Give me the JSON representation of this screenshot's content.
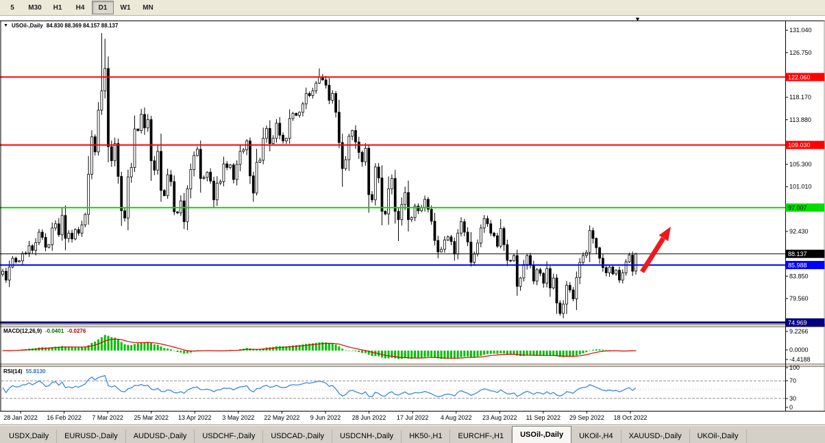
{
  "toolbar": {
    "timeframes": [
      "5",
      "M30",
      "H1",
      "H4",
      "D1",
      "W1",
      "MN"
    ],
    "active": "D1"
  },
  "chart": {
    "title": "USOil-,Daily",
    "ohlc_text": "84.830 88.369 84.157 88.137",
    "dropdown_icon": "▼",
    "scroll_marker_icon": "▼",
    "arrow_color": "#f01818",
    "levels": [
      {
        "name": "resistance-line-1",
        "price": 122.06,
        "label": "122.060",
        "line_color": "#FF0000",
        "text_color": "#FFFFFF",
        "width": 2
      },
      {
        "name": "resistance-line-2",
        "price": 109.03,
        "label": "109.030",
        "line_color": "#FF0000",
        "text_color": "#FFFFFF",
        "width": 2
      },
      {
        "name": "pivot-line-green",
        "price": 97.007,
        "label": "97.007",
        "line_color": "#00DD00",
        "text_color": "#000000",
        "width": 2
      },
      {
        "name": "current-price-line",
        "price": 88.137,
        "label": "88.137",
        "line_color": "#000000",
        "text_color": "#FFFFFF",
        "width": 1
      },
      {
        "name": "support-line-blue",
        "price": 85.988,
        "label": "85.988",
        "line_color": "#0000FF",
        "text_color": "#FFFFFF",
        "width": 2
      },
      {
        "name": "support-line-navy",
        "price": 74.969,
        "label": "74.969",
        "line_color": "#000080",
        "text_color": "#FFFFFF",
        "width": 3
      }
    ],
    "price_scale_labels": [
      {
        "price": 131.04,
        "text": "131.040"
      },
      {
        "price": 126.75,
        "text": "126.750"
      },
      {
        "price": 118.17,
        "text": "118.170"
      },
      {
        "price": 113.88,
        "text": "113.880"
      },
      {
        "price": 105.3,
        "text": "105.300"
      },
      {
        "price": 101.01,
        "text": "101.010"
      },
      {
        "price": 92.43,
        "text": "92.430"
      },
      {
        "price": 83.85,
        "text": "83.850"
      },
      {
        "price": 79.56,
        "text": "79.560"
      }
    ]
  },
  "chart_data": {
    "type": "candlestick",
    "title": "USOil-,Daily",
    "current_bar": {
      "open": 84.83,
      "high": 88.369,
      "low": 84.157,
      "close": 88.137
    },
    "y_range": [
      74.7,
      132.9
    ],
    "x_labels": [
      "28 Jan 2022",
      "16 Feb 2022",
      "7 Mar 2022",
      "25 Mar 2022",
      "13 Apr 2022",
      "3 May 2022",
      "22 May 2022",
      "9 Jun 2022",
      "28 Jun 2022",
      "17 Jul 2022",
      "4 Aug 2022",
      "23 Aug 2022",
      "11 Sep 2022",
      "29 Sep 2022",
      "18 Oct 2022"
    ],
    "bull_color": "#FFFFFF",
    "bear_color": "#000000",
    "outline_color": "#000000",
    "closes": [
      84.8,
      83.1,
      85.6,
      87.3,
      86.6,
      86.8,
      88.2,
      88.3,
      89.7,
      88.8,
      90.3,
      92.3,
      91.3,
      89.4,
      89.9,
      93.1,
      93.9,
      91.8,
      95.5,
      91.1,
      92.1,
      91.0,
      92.8,
      92.1,
      93.7,
      95.7,
      103.4,
      110.6,
      107.7,
      115.7,
      119.4,
      123.7,
      108.7,
      106.0,
      109.3,
      103.0,
      96.4,
      95.0,
      102.9,
      104.7,
      112.1,
      111.8,
      114.9,
      112.3,
      113.9,
      106.0,
      104.2,
      107.8,
      100.3,
      99.3,
      103.3,
      102.0,
      96.2,
      96.0,
      98.3,
      94.3,
      100.6,
      104.3,
      107.0,
      108.2,
      102.6,
      102.8,
      103.8,
      102.1,
      98.5,
      101.7,
      102.0,
      105.4,
      104.7,
      105.2,
      102.4,
      105.3,
      107.8,
      108.1,
      109.8,
      103.1,
      99.8,
      105.7,
      106.1,
      110.3,
      112.2,
      109.3,
      110.3,
      113.2,
      110.9,
      109.8,
      110.3,
      114.1,
      115.1,
      114.7,
      115.3,
      116.9,
      118.9,
      118.5,
      119.4,
      120.9,
      122.1,
      121.5,
      120.5,
      117.6,
      118.9,
      115.3,
      109.5,
      104.5,
      106.2,
      110.7,
      111.8,
      109.6,
      107.6,
      105.8,
      108.4,
      99.5,
      98.5,
      104.8,
      102.7,
      96.3,
      95.8,
      100.6,
      102.6,
      96.3,
      94.7,
      97.6,
      99.9,
      94.7,
      95.1,
      97.3,
      96.4,
      97.0,
      98.6,
      96.7,
      94.4,
      90.7,
      88.5,
      89.0,
      90.8,
      91.4,
      90.5,
      88.1,
      92.1,
      94.3,
      92.3,
      90.4,
      86.5,
      88.1,
      90.2,
      93.1,
      94.9,
      93.9,
      92.1,
      91.6,
      89.6,
      93.0,
      89.9,
      86.9,
      86.8,
      87.8,
      81.9,
      83.5,
      86.1,
      87.8,
      85.9,
      82.9,
      85.1,
      84.4,
      82.5,
      85.3,
      81.6,
      83.5,
      78.7,
      76.7,
      78.5,
      82.1,
      81.2,
      79.5,
      83.6,
      86.5,
      87.8,
      88.4,
      92.6,
      91.1,
      89.3,
      87.3,
      85.5,
      84.5,
      85.6,
      84.3,
      85.0,
      83.1,
      84.5,
      86.6,
      87.9,
      84.8,
      88.137
    ],
    "overrides": {
      "30": {
        "h": 130.5,
        "l": 114.8
      },
      "31": {
        "h": 129.4
      },
      "32": {
        "h": 126.0,
        "l": 105.7
      },
      "36": {
        "l": 93.5
      },
      "55": {
        "l": 92.9
      },
      "96": {
        "h": 123.7
      },
      "103": {
        "l": 101.0
      },
      "120": {
        "l": 90.6
      },
      "142": {
        "l": 85.7
      },
      "169": {
        "l": 76.25
      },
      "178": {
        "h": 93.6
      },
      "192": {
        "o": 84.83,
        "h": 88.369,
        "l": 84.157
      }
    }
  },
  "macd": {
    "label": "MACD(12,26,9)",
    "value_main": "-0.0401",
    "value_signal": "-0.0276",
    "axis": [
      "9.2266",
      "0.0000",
      "-4.4188"
    ],
    "histogram_color": "#00C000",
    "signal_color": "#E00000"
  },
  "rsi": {
    "label": "RSI(14)",
    "value": "55.8130",
    "axis": [
      "100",
      "70",
      "30",
      "0"
    ],
    "line_color": "#3A86E0",
    "levels": [
      70,
      30
    ]
  },
  "tabs": {
    "items": [
      "USDX,Daily",
      "EURUSD-,Daily",
      "AUDUSD-,Daily",
      "USDCHF-,Daily",
      "USDCAD-,Daily",
      "USDCNH-,Daily",
      "HK50-,H1",
      "EURCHF-,H1",
      "USOil-,Daily",
      "UKOil-,H4",
      "XAUUSD-,Daily",
      "UKOil-,Daily"
    ],
    "active": "USOil-,Daily"
  }
}
